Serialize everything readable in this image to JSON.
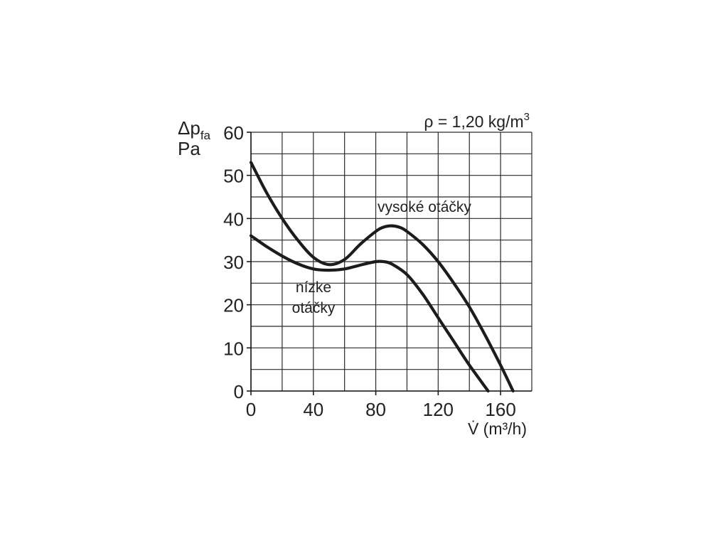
{
  "chart_data": {
    "type": "line",
    "y_label_top": "Δp",
    "y_label_sub": "fa",
    "y_unit": "Pa",
    "x_label": "V̇ (m³/h)",
    "density_prefix": "ρ = 1,20 kg/m",
    "density_sup": "3",
    "xlim": [
      0,
      180
    ],
    "ylim": [
      0,
      60
    ],
    "x_major_step": 20,
    "y_major_step": 5,
    "x_ticks": [
      0,
      40,
      80,
      120,
      160
    ],
    "y_ticks": [
      0,
      10,
      20,
      30,
      40,
      50,
      60
    ],
    "grid": true,
    "series": [
      {
        "name": "vysoké otáčky",
        "label_lines": [
          "vysoké otáčky"
        ],
        "x": [
          0,
          10,
          20,
          30,
          40,
          50,
          60,
          70,
          80,
          85,
          90,
          95,
          100,
          110,
          120,
          130,
          140,
          150,
          160,
          168
        ],
        "y": [
          53,
          46,
          40,
          35,
          31,
          29.3,
          30.5,
          34,
          37,
          38,
          38.3,
          38,
          37,
          34,
          30,
          25,
          19.5,
          13,
          6,
          0
        ]
      },
      {
        "name": "nízke otáčky",
        "label_lines": [
          "nízke",
          "otáčky"
        ],
        "x": [
          0,
          10,
          20,
          30,
          40,
          50,
          60,
          70,
          80,
          85,
          90,
          100,
          110,
          120,
          130,
          140,
          152
        ],
        "y": [
          36,
          33.5,
          31.3,
          29.5,
          28.3,
          28,
          28.3,
          29.2,
          30,
          30,
          29.5,
          27,
          22.5,
          17,
          11.5,
          6,
          0
        ]
      }
    ]
  }
}
